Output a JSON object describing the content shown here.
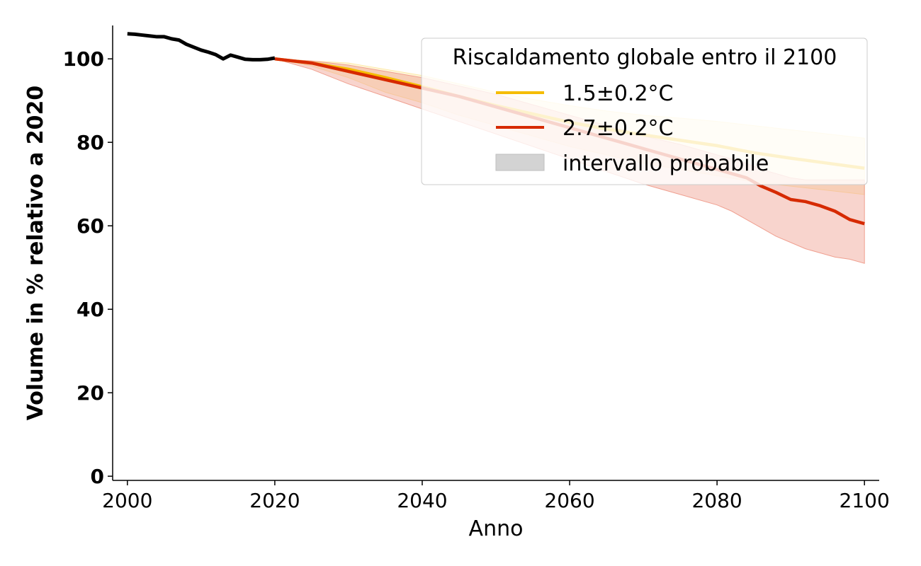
{
  "chart_data": {
    "type": "line",
    "xlabel": "Anno",
    "ylabel": "Volume in % relativo a 2020",
    "xlim": [
      1998,
      2102
    ],
    "ylim": [
      -1,
      108
    ],
    "xticks": [
      2000,
      2020,
      2040,
      2060,
      2080,
      2100
    ],
    "yticks": [
      0,
      20,
      40,
      60,
      80,
      100
    ],
    "grid": false,
    "legend": {
      "placement": "top-right",
      "title": "Riscaldamento globale entro il 2100",
      "entries": [
        "1.5±0.2°C",
        "2.7±0.2°C",
        "intervallo probabile"
      ]
    },
    "historical": {
      "color": "#000000",
      "x": [
        2000,
        2001,
        2002,
        2003,
        2004,
        2005,
        2006,
        2007,
        2008,
        2009,
        2010,
        2011,
        2012,
        2013,
        2014,
        2015,
        2016,
        2017,
        2018,
        2019,
        2020
      ],
      "y": [
        106,
        105.9,
        105.7,
        105.5,
        105.3,
        105.3,
        104.8,
        104.5,
        103.5,
        102.8,
        102.1,
        101.6,
        101,
        100,
        100.9,
        100.4,
        99.9,
        99.8,
        99.8,
        99.9,
        100.2
      ]
    },
    "series": [
      {
        "name": "1.5±0.2°C",
        "color": "#f5bc00",
        "band_color": "#fde9a8",
        "x": [
          2020,
          2025,
          2030,
          2035,
          2040,
          2045,
          2050,
          2055,
          2060,
          2065,
          2070,
          2075,
          2080,
          2085,
          2090,
          2095,
          2100
        ],
        "y": [
          100,
          99,
          97.5,
          95.5,
          93.3,
          91,
          88.8,
          86.8,
          84.8,
          83.2,
          81.8,
          80.5,
          79.2,
          77.5,
          76.2,
          75,
          73.8
        ],
        "lower": [
          100,
          98.3,
          95.5,
          92,
          89.5,
          86.5,
          84,
          81.5,
          79,
          77,
          75,
          73.5,
          72,
          70.5,
          69.5,
          68.5,
          67.5
        ],
        "upper": [
          100,
          99.5,
          99,
          97.5,
          96,
          94,
          92,
          90.3,
          88.8,
          87.5,
          86.5,
          85.8,
          85,
          84,
          83,
          82,
          81
        ]
      },
      {
        "name": "2.7±0.2°C",
        "color": "#d62a00",
        "band_color": "#f0a090",
        "x": [
          2020,
          2025,
          2030,
          2035,
          2040,
          2045,
          2050,
          2055,
          2060,
          2065,
          2070,
          2075,
          2080,
          2082,
          2084,
          2086,
          2088,
          2090,
          2092,
          2094,
          2096,
          2098,
          2100
        ],
        "y": [
          100,
          99,
          97,
          95,
          93,
          91,
          88.5,
          86,
          83.5,
          81,
          78.5,
          76,
          73.5,
          72.5,
          71.5,
          69.5,
          68,
          66.3,
          65.8,
          64.8,
          63.5,
          61.5,
          60.5
        ],
        "lower": [
          100,
          97.5,
          94,
          91,
          88,
          85,
          82,
          79,
          76,
          73,
          70,
          67.5,
          65,
          63.5,
          61.5,
          59.5,
          57.5,
          56,
          54.5,
          53.5,
          52.5,
          52,
          51
        ],
        "upper": [
          100,
          99.5,
          98.5,
          97,
          95.5,
          93.5,
          91.5,
          89,
          86.5,
          84,
          81.5,
          79.5,
          77,
          76,
          75,
          73.5,
          72.5,
          71.5,
          71,
          71,
          71,
          71,
          71
        ]
      }
    ]
  }
}
